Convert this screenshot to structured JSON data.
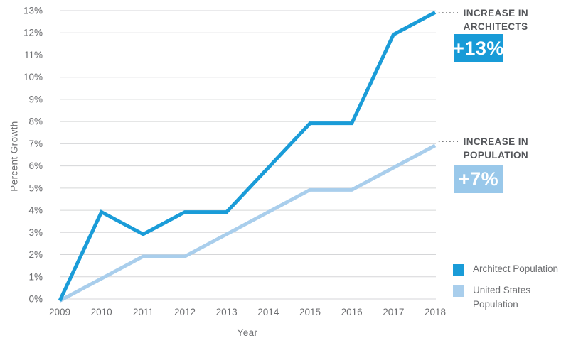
{
  "chart_data": {
    "type": "line",
    "title": "",
    "x": [
      2009,
      2010,
      2011,
      2012,
      2013,
      2014,
      2015,
      2016,
      2017,
      2018
    ],
    "series": [
      {
        "name": "Architect Population",
        "color": "#1A9CD8",
        "values": [
          0,
          4,
          3,
          4,
          4,
          6,
          8,
          8,
          12,
          13
        ]
      },
      {
        "name": "United States Population",
        "color": "#A9CEEC",
        "values": [
          0,
          1,
          2,
          2,
          3,
          4,
          5,
          5,
          6,
          7
        ]
      }
    ],
    "xlabel": "Year",
    "ylabel": "Percent Growth",
    "ylim": [
      0,
      13
    ],
    "y_ticks": [
      "0%",
      "1%",
      "2%",
      "3%",
      "4%",
      "5%",
      "6%",
      "7%",
      "8%",
      "9%",
      "10%",
      "11%",
      "12%",
      "13%"
    ],
    "grid": true,
    "legend_position": "bottom-right"
  },
  "annotations": {
    "architects": {
      "dots": "······",
      "line1": "INCREASE IN",
      "line2": "ARCHITECTS",
      "badge": "+13%",
      "badge_color": "#189BD7",
      "badge_text_color": "#FFFFFF"
    },
    "population": {
      "dots": "······",
      "line1": "INCREASE IN",
      "line2": "POPULATION",
      "badge": "+7%",
      "badge_color": "#99C8EA",
      "badge_text_color": "#FFFFFF"
    }
  },
  "colors": {
    "gridline": "#D5D6D8",
    "axis_text": "#6D6E71",
    "annotation_text": "#54565A",
    "dots": "#77787B",
    "background": "#FFFFFF"
  }
}
